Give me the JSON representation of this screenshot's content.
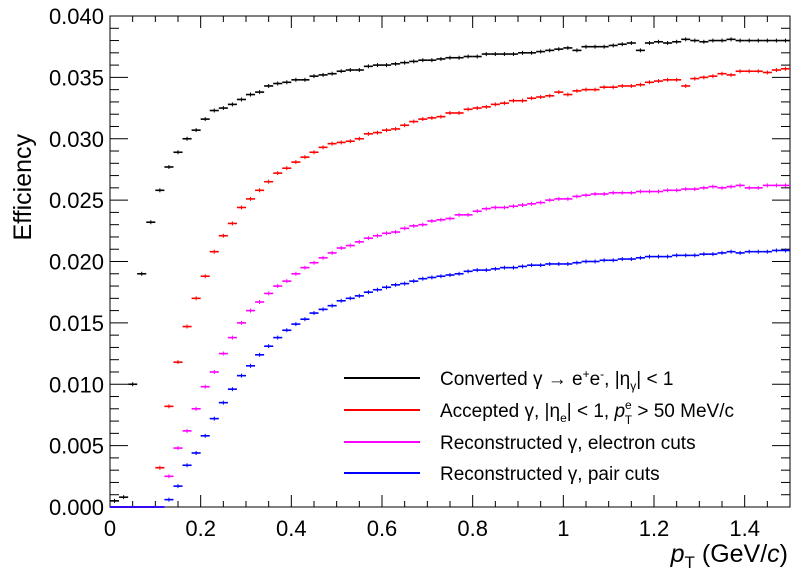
{
  "chart_data": {
    "type": "scatter",
    "ylabel": "Efficiency",
    "xlabel": "p_T (GeV/c)",
    "xlim": [
      0,
      1.5
    ],
    "ylim": [
      0,
      0.04
    ],
    "x_ticks": [
      "0",
      "0.2",
      "0.4",
      "0.6",
      "0.8",
      "1",
      "1.2",
      "1.4"
    ],
    "y_ticks": [
      "0.000",
      "0.005",
      "0.010",
      "0.015",
      "0.020",
      "0.025",
      "0.030",
      "0.035",
      "0.040"
    ],
    "grid": false,
    "legend_position": "bottom-right",
    "bin_width": 0.02,
    "x_start": 0.01,
    "series": [
      {
        "name": "Converted γ → e⁺e⁻, |η_γ| < 1",
        "color": "#000000",
        "values": [
          0.0005,
          0.0008,
          0.01,
          0.019,
          0.0232,
          0.0258,
          0.0277,
          0.0289,
          0.03,
          0.0307,
          0.0316,
          0.0323,
          0.0325,
          0.0328,
          0.0332,
          0.0336,
          0.0338,
          0.0343,
          0.0345,
          0.0346,
          0.0348,
          0.0348,
          0.0351,
          0.0352,
          0.0353,
          0.0355,
          0.0356,
          0.0356,
          0.0359,
          0.036,
          0.036,
          0.0361,
          0.0362,
          0.0363,
          0.0364,
          0.0364,
          0.0365,
          0.0366,
          0.0366,
          0.0367,
          0.0367,
          0.0369,
          0.0369,
          0.0369,
          0.0369,
          0.037,
          0.037,
          0.0371,
          0.0372,
          0.0373,
          0.0374,
          0.0372,
          0.0375,
          0.0375,
          0.0375,
          0.0376,
          0.0377,
          0.0378,
          0.0372,
          0.0378,
          0.0379,
          0.0378,
          0.0379,
          0.0381,
          0.038,
          0.0379,
          0.038,
          0.038,
          0.0381,
          0.038,
          0.038,
          0.038,
          0.038,
          0.038,
          0.038
        ]
      },
      {
        "name": "Accepted γ, |η_e| < 1, p_T^e > 50 MeV/c",
        "color": "#ff0000",
        "values": [
          0.0,
          0.0,
          0.0,
          0.0,
          0.0,
          0.0032,
          0.0082,
          0.0118,
          0.0147,
          0.017,
          0.0188,
          0.0208,
          0.0221,
          0.0231,
          0.0244,
          0.0251,
          0.0258,
          0.0265,
          0.0272,
          0.0276,
          0.0281,
          0.0285,
          0.0289,
          0.0293,
          0.0296,
          0.0297,
          0.0298,
          0.03,
          0.0304,
          0.0305,
          0.0307,
          0.0308,
          0.0311,
          0.0314,
          0.0316,
          0.0317,
          0.0318,
          0.0321,
          0.0321,
          0.0324,
          0.0325,
          0.0326,
          0.0328,
          0.0329,
          0.0331,
          0.0331,
          0.0333,
          0.0334,
          0.0335,
          0.0338,
          0.0336,
          0.0339,
          0.034,
          0.034,
          0.0342,
          0.0342,
          0.0343,
          0.0343,
          0.0344,
          0.0346,
          0.0347,
          0.0348,
          0.0348,
          0.0343,
          0.0349,
          0.035,
          0.0351,
          0.0353,
          0.0352,
          0.0355,
          0.0355,
          0.0355,
          0.0354,
          0.0356,
          0.0357
        ]
      },
      {
        "name": "Reconstructed γ, electron cuts",
        "color": "#ff00ff",
        "values": [
          0.0,
          0.0,
          0.0,
          0.0,
          0.0,
          0.0,
          0.0025,
          0.0048,
          0.0062,
          0.008,
          0.0098,
          0.011,
          0.0125,
          0.0138,
          0.015,
          0.016,
          0.0167,
          0.0174,
          0.018,
          0.0184,
          0.019,
          0.0195,
          0.0199,
          0.0203,
          0.0207,
          0.0211,
          0.0213,
          0.0216,
          0.0219,
          0.0221,
          0.0223,
          0.0224,
          0.0227,
          0.0229,
          0.023,
          0.0233,
          0.0234,
          0.0235,
          0.0238,
          0.0238,
          0.0241,
          0.0243,
          0.0244,
          0.0244,
          0.0245,
          0.0246,
          0.0247,
          0.0248,
          0.025,
          0.0251,
          0.0251,
          0.0253,
          0.0254,
          0.0255,
          0.0255,
          0.0256,
          0.0256,
          0.0256,
          0.0257,
          0.0257,
          0.0257,
          0.0258,
          0.0258,
          0.0259,
          0.0259,
          0.026,
          0.0261,
          0.026,
          0.0261,
          0.0262,
          0.026,
          0.026,
          0.0262,
          0.0262,
          0.0262
        ]
      },
      {
        "name": "Reconstructed γ, pair cuts",
        "color": "#0000ff",
        "values": [
          0.0,
          0.0,
          0.0,
          0.0,
          0.0,
          0.0,
          0.0006,
          0.0017,
          0.0034,
          0.0044,
          0.0058,
          0.0072,
          0.0085,
          0.0096,
          0.0107,
          0.0115,
          0.0124,
          0.0131,
          0.0138,
          0.0144,
          0.0149,
          0.0153,
          0.0158,
          0.0161,
          0.0164,
          0.0168,
          0.017,
          0.0172,
          0.0175,
          0.0177,
          0.0179,
          0.0181,
          0.0182,
          0.0184,
          0.0186,
          0.0187,
          0.0188,
          0.0189,
          0.019,
          0.0192,
          0.0193,
          0.0193,
          0.0194,
          0.0195,
          0.0195,
          0.0196,
          0.0197,
          0.0197,
          0.0198,
          0.0198,
          0.0198,
          0.0199,
          0.02,
          0.02,
          0.0201,
          0.0201,
          0.0202,
          0.0202,
          0.0203,
          0.0204,
          0.0204,
          0.0204,
          0.0205,
          0.0205,
          0.0205,
          0.0206,
          0.0206,
          0.0207,
          0.0208,
          0.0207,
          0.0208,
          0.0208,
          0.0208,
          0.0209,
          0.0209
        ]
      }
    ]
  }
}
